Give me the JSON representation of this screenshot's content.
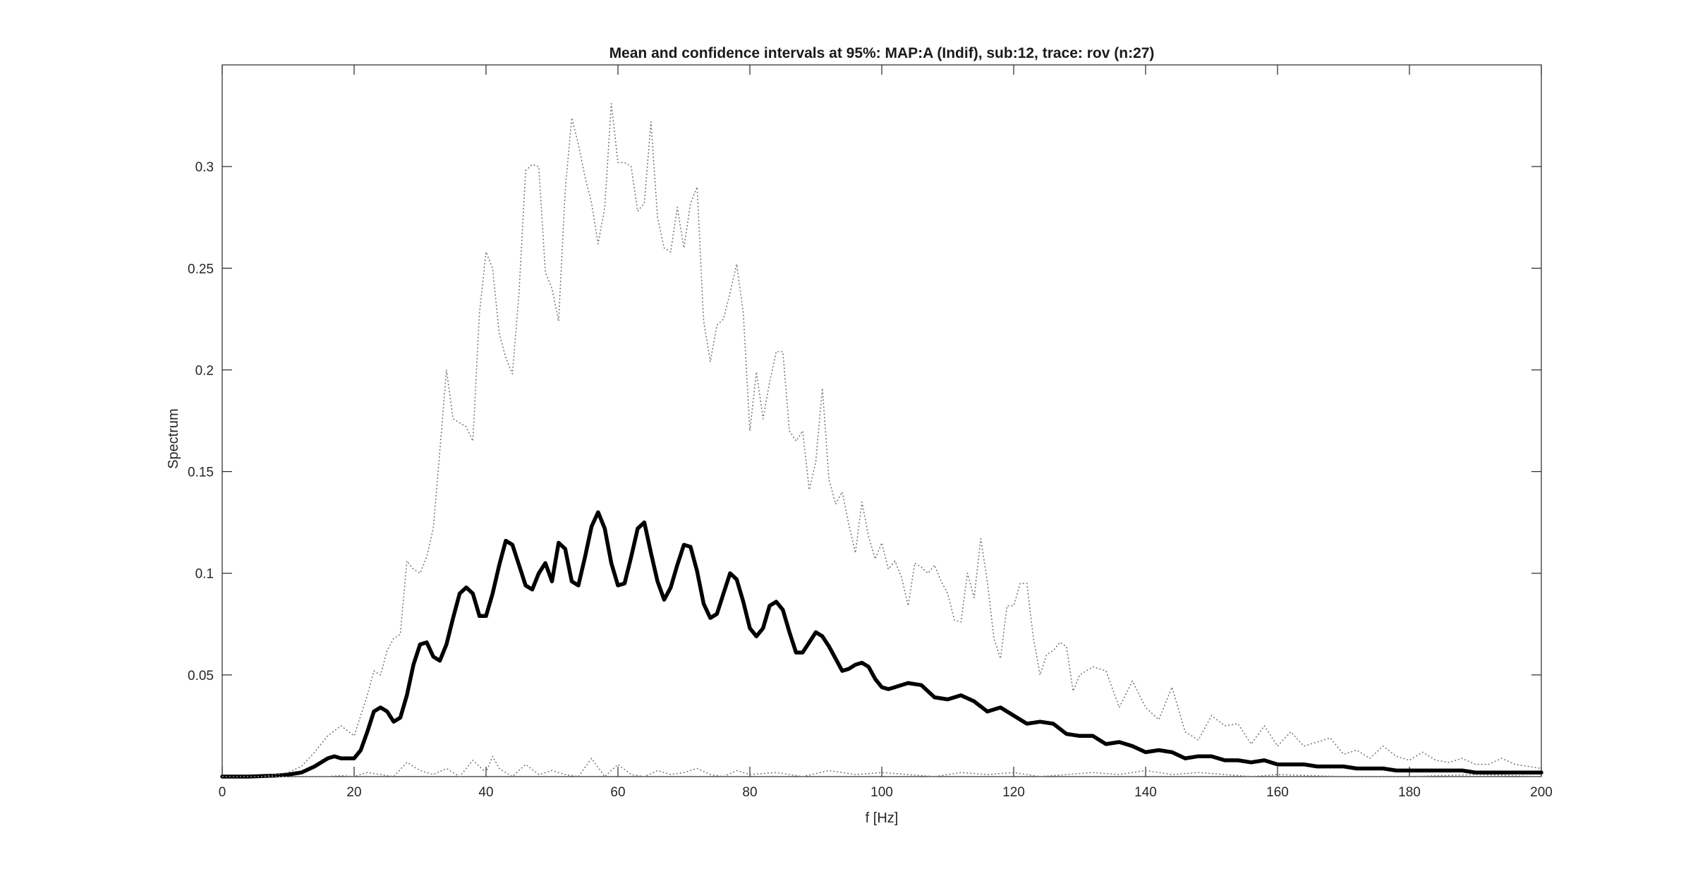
{
  "chart_data": {
    "type": "line",
    "title": "Mean and confidence intervals at 95%: MAP:A (Indif), sub:12, trace: rov (n:27)",
    "xlabel": "f [Hz]",
    "ylabel": "Spectrum",
    "xlim": [
      0,
      200
    ],
    "ylim": [
      0,
      0.35
    ],
    "xticks": [
      0,
      20,
      40,
      60,
      80,
      100,
      120,
      140,
      160,
      180,
      200
    ],
    "xtick_labels": [
      "0",
      "20",
      "40",
      "60",
      "80",
      "100",
      "120",
      "140",
      "160",
      "180",
      "200"
    ],
    "yticks": [
      0.05,
      0.1,
      0.15,
      0.2,
      0.25,
      0.3
    ],
    "ytick_labels": [
      "0.05",
      "0.1",
      "0.15",
      "0.2",
      "0.25",
      "0.3"
    ],
    "grid": false,
    "box": true,
    "series": [
      {
        "name": "",
        "color": "#000000",
        "style": "solid",
        "x": [
          0,
          4,
          8,
          10,
          12,
          14,
          16,
          17,
          18,
          20,
          21,
          22,
          23,
          24,
          25,
          26,
          27,
          28,
          29,
          30,
          31,
          32,
          33,
          34,
          35,
          36,
          37,
          38,
          39,
          40,
          41,
          42,
          43,
          44,
          45,
          46,
          47,
          48,
          49,
          50,
          51,
          52,
          53,
          54,
          55,
          56,
          57,
          58,
          59,
          60,
          61,
          62,
          63,
          64,
          65,
          66,
          67,
          68,
          69,
          70,
          71,
          72,
          73,
          74,
          75,
          76,
          77,
          78,
          79,
          80,
          81,
          82,
          83,
          84,
          85,
          86,
          87,
          88,
          89,
          90,
          91,
          92,
          93,
          94,
          95,
          96,
          97,
          98,
          99,
          100,
          101,
          102,
          104,
          106,
          108,
          110,
          112,
          114,
          116,
          118,
          120,
          122,
          124,
          126,
          128,
          130,
          132,
          134,
          136,
          138,
          140,
          142,
          144,
          146,
          148,
          150,
          152,
          154,
          156,
          158,
          160,
          162,
          164,
          166,
          168,
          170,
          172,
          174,
          176,
          178,
          180,
          182,
          184,
          186,
          188,
          190,
          192,
          194,
          196,
          198,
          200
        ],
        "y": [
          0.0,
          0.0,
          0.0005,
          0.001,
          0.002,
          0.005,
          0.009,
          0.01,
          0.009,
          0.009,
          0.013,
          0.022,
          0.032,
          0.034,
          0.032,
          0.027,
          0.029,
          0.04,
          0.055,
          0.065,
          0.066,
          0.059,
          0.057,
          0.065,
          0.078,
          0.09,
          0.093,
          0.09,
          0.079,
          0.079,
          0.09,
          0.104,
          0.116,
          0.114,
          0.104,
          0.094,
          0.092,
          0.1,
          0.105,
          0.096,
          0.115,
          0.112,
          0.096,
          0.094,
          0.108,
          0.123,
          0.13,
          0.122,
          0.105,
          0.094,
          0.095,
          0.108,
          0.122,
          0.125,
          0.11,
          0.096,
          0.087,
          0.093,
          0.104,
          0.114,
          0.113,
          0.101,
          0.085,
          0.078,
          0.08,
          0.09,
          0.1,
          0.097,
          0.086,
          0.073,
          0.069,
          0.073,
          0.084,
          0.086,
          0.082,
          0.071,
          0.061,
          0.061,
          0.066,
          0.071,
          0.069,
          0.064,
          0.058,
          0.052,
          0.053,
          0.055,
          0.056,
          0.054,
          0.048,
          0.044,
          0.043,
          0.044,
          0.046,
          0.045,
          0.039,
          0.038,
          0.04,
          0.037,
          0.032,
          0.034,
          0.03,
          0.026,
          0.027,
          0.026,
          0.021,
          0.02,
          0.02,
          0.016,
          0.017,
          0.015,
          0.012,
          0.013,
          0.012,
          0.009,
          0.01,
          0.01,
          0.008,
          0.008,
          0.007,
          0.008,
          0.006,
          0.006,
          0.006,
          0.005,
          0.005,
          0.005,
          0.004,
          0.004,
          0.004,
          0.003,
          0.003,
          0.003,
          0.003,
          0.003,
          0.003,
          0.002,
          0.002,
          0.002,
          0.002,
          0.002,
          0.002
        ]
      },
      {
        "name": "",
        "color": "#7a7a7a",
        "style": "dotted",
        "x": [
          0,
          6,
          10,
          12,
          14,
          16,
          18,
          20,
          22,
          23,
          24,
          25,
          26,
          27,
          28,
          29,
          30,
          31,
          32,
          33,
          34,
          35,
          36,
          37,
          38,
          39,
          40,
          41,
          42,
          43,
          44,
          45,
          46,
          47,
          48,
          49,
          50,
          51,
          52,
          53,
          54,
          55,
          56,
          57,
          58,
          59,
          60,
          61,
          62,
          63,
          64,
          65,
          66,
          67,
          68,
          69,
          70,
          71,
          72,
          73,
          74,
          75,
          76,
          77,
          78,
          79,
          80,
          81,
          82,
          83,
          84,
          85,
          86,
          87,
          88,
          89,
          90,
          91,
          92,
          93,
          94,
          95,
          96,
          97,
          98,
          99,
          100,
          101,
          102,
          103,
          104,
          105,
          106,
          107,
          108,
          109,
          110,
          111,
          112,
          113,
          114,
          115,
          116,
          117,
          118,
          119,
          120,
          121,
          122,
          123,
          124,
          125,
          126,
          127,
          128,
          129,
          130,
          132,
          134,
          136,
          138,
          140,
          142,
          144,
          146,
          148,
          150,
          152,
          154,
          156,
          158,
          160,
          162,
          164,
          166,
          168,
          170,
          172,
          174,
          176,
          178,
          180,
          182,
          184,
          186,
          188,
          190,
          192,
          194,
          196,
          198,
          200
        ],
        "y": [
          0.0,
          0.0,
          0.002,
          0.005,
          0.012,
          0.02,
          0.025,
          0.02,
          0.04,
          0.052,
          0.05,
          0.062,
          0.068,
          0.07,
          0.106,
          0.102,
          0.1,
          0.108,
          0.122,
          0.16,
          0.2,
          0.176,
          0.174,
          0.172,
          0.165,
          0.228,
          0.258,
          0.25,
          0.218,
          0.206,
          0.198,
          0.238,
          0.298,
          0.301,
          0.3,
          0.248,
          0.24,
          0.224,
          0.288,
          0.324,
          0.311,
          0.295,
          0.282,
          0.262,
          0.28,
          0.331,
          0.302,
          0.302,
          0.3,
          0.278,
          0.282,
          0.322,
          0.275,
          0.26,
          0.258,
          0.28,
          0.26,
          0.282,
          0.29,
          0.224,
          0.204,
          0.222,
          0.225,
          0.238,
          0.252,
          0.228,
          0.17,
          0.199,
          0.176,
          0.194,
          0.209,
          0.209,
          0.17,
          0.165,
          0.17,
          0.141,
          0.155,
          0.191,
          0.146,
          0.134,
          0.14,
          0.124,
          0.11,
          0.135,
          0.118,
          0.107,
          0.115,
          0.102,
          0.106,
          0.098,
          0.084,
          0.105,
          0.103,
          0.1,
          0.104,
          0.096,
          0.09,
          0.077,
          0.076,
          0.1,
          0.088,
          0.117,
          0.096,
          0.068,
          0.058,
          0.084,
          0.084,
          0.095,
          0.095,
          0.068,
          0.05,
          0.06,
          0.062,
          0.066,
          0.064,
          0.042,
          0.05,
          0.054,
          0.052,
          0.034,
          0.047,
          0.034,
          0.028,
          0.044,
          0.022,
          0.018,
          0.03,
          0.025,
          0.026,
          0.016,
          0.025,
          0.015,
          0.022,
          0.015,
          0.017,
          0.019,
          0.011,
          0.013,
          0.009,
          0.015,
          0.01,
          0.008,
          0.012,
          0.008,
          0.007,
          0.009,
          0.006,
          0.006,
          0.009,
          0.006,
          0.005,
          0.004
        ]
      },
      {
        "name": "",
        "color": "#7a7a7a",
        "style": "dotted",
        "x": [
          0,
          10,
          16,
          18,
          20,
          22,
          24,
          26,
          28,
          30,
          32,
          34,
          36,
          38,
          40,
          41,
          42,
          44,
          46,
          48,
          50,
          52,
          54,
          56,
          58,
          60,
          62,
          64,
          66,
          68,
          70,
          72,
          74,
          76,
          78,
          80,
          84,
          88,
          92,
          96,
          100,
          104,
          108,
          112,
          116,
          120,
          124,
          128,
          132,
          136,
          140,
          144,
          148,
          152,
          156,
          160,
          170,
          180,
          190,
          200
        ],
        "y": [
          0.0,
          0.0,
          0.0,
          0.0005,
          0.0,
          0.002,
          0.001,
          0.0,
          0.007,
          0.003,
          0.001,
          0.004,
          0.0,
          0.008,
          0.002,
          0.01,
          0.004,
          0.0,
          0.006,
          0.001,
          0.003,
          0.001,
          0.0,
          0.009,
          0.0,
          0.006,
          0.001,
          0.0,
          0.003,
          0.001,
          0.002,
          0.004,
          0.001,
          0.0,
          0.003,
          0.001,
          0.002,
          0.0,
          0.003,
          0.001,
          0.002,
          0.001,
          0.0,
          0.002,
          0.001,
          0.002,
          0.0,
          0.001,
          0.002,
          0.001,
          0.003,
          0.001,
          0.002,
          0.001,
          0.0,
          0.001,
          0.0,
          0.0,
          0.001,
          0.0
        ]
      }
    ]
  }
}
